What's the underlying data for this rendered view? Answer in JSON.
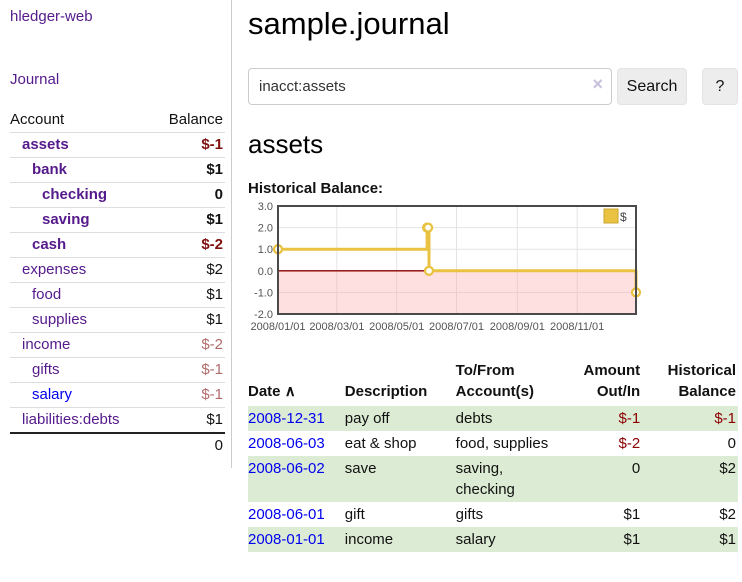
{
  "sidebar": {
    "app_title": "hledger-web",
    "journal_link": "Journal",
    "accounts": {
      "header_account": "Account",
      "header_balance": "Balance",
      "rows": [
        {
          "name": "assets",
          "balance": "$-1",
          "depth": 0,
          "bold": true,
          "unvisited": false
        },
        {
          "name": "bank",
          "balance": "$1",
          "depth": 1,
          "bold": true,
          "unvisited": false
        },
        {
          "name": "checking",
          "balance": "0",
          "depth": 2,
          "bold": true,
          "unvisited": false
        },
        {
          "name": "saving",
          "balance": "$1",
          "depth": 2,
          "bold": true,
          "unvisited": false
        },
        {
          "name": "cash",
          "balance": "$-2",
          "depth": 1,
          "bold": true,
          "unvisited": false
        },
        {
          "name": "expenses",
          "balance": "$2",
          "depth": 0,
          "bold": false,
          "unvisited": false
        },
        {
          "name": "food",
          "balance": "$1",
          "depth": 1,
          "bold": false,
          "unvisited": false
        },
        {
          "name": "supplies",
          "balance": "$1",
          "depth": 1,
          "bold": false,
          "unvisited": false
        },
        {
          "name": "income",
          "balance": "$-2",
          "depth": 0,
          "bold": false,
          "unvisited": false
        },
        {
          "name": "gifts",
          "balance": "$-1",
          "depth": 1,
          "bold": false,
          "unvisited": false
        },
        {
          "name": "salary",
          "balance": "$-1",
          "depth": 1,
          "bold": false,
          "unvisited": true
        },
        {
          "name": "liabilities:debts",
          "balance": "$1",
          "depth": 0,
          "bold": false,
          "unvisited": false
        }
      ],
      "total": "0"
    }
  },
  "main": {
    "title": "sample.journal",
    "search": {
      "value": "inacct:assets",
      "clear_glyph": "×",
      "button_label": "Search",
      "help_label": "?"
    },
    "account_heading": "assets",
    "chart_label": "Historical Balance:"
  },
  "chart_data": {
    "type": "line",
    "style": "steps",
    "title": "Historical Balance",
    "series": [
      {
        "name": "$",
        "color": "#e8c240",
        "points": [
          [
            "2008-01-01",
            1
          ],
          [
            "2008-06-01",
            2
          ],
          [
            "2008-06-02",
            2
          ],
          [
            "2008-06-03",
            0
          ],
          [
            "2008-12-31",
            -1
          ]
        ]
      }
    ],
    "xlim": [
      "2008-01-01",
      "2008-12-31"
    ],
    "ylim": [
      -2,
      3
    ],
    "yticks": [
      "3.0",
      "2.0",
      "1.0",
      "0.0",
      "-1.0",
      "-2.0"
    ],
    "ytick_values": [
      3,
      2,
      1,
      0,
      -1,
      -2
    ],
    "xticks": [
      {
        "date": "2008-01-01",
        "label": "2008/01/01"
      },
      {
        "date": "2008-03-01",
        "label": "2008/03/01"
      },
      {
        "date": "2008-05-01",
        "label": "2008/05/01"
      },
      {
        "date": "2008-07-01",
        "label": "2008/07/01"
      },
      {
        "date": "2008-09-01",
        "label": "2008/09/01"
      },
      {
        "date": "2008-11-01",
        "label": "2008/11/01"
      }
    ],
    "grid": true,
    "legend_position": "top-right",
    "negative_region": true,
    "zero_line_color": "#8b0000",
    "axis_label_color": "#545454"
  },
  "register": {
    "headers": {
      "date": "Date",
      "sort_arrow": "∧",
      "description": "Description",
      "accounts": "To/From Account(s)",
      "amount": "Amount Out/In",
      "balance": "Historical Balance"
    },
    "rows": [
      {
        "date": "2008-12-31",
        "description": "pay off",
        "accounts": "debts",
        "amount": "$-1",
        "balance": "$-1"
      },
      {
        "date": "2008-06-03",
        "description": "eat & shop",
        "accounts": "food, supplies",
        "amount": "$-2",
        "balance": "0"
      },
      {
        "date": "2008-06-02",
        "description": "save",
        "accounts": "saving, checking",
        "amount": "0",
        "balance": "$2"
      },
      {
        "date": "2008-06-01",
        "description": "gift",
        "accounts": "gifts",
        "amount": "$1",
        "balance": "$2"
      },
      {
        "date": "2008-01-01",
        "description": "income",
        "accounts": "salary",
        "amount": "$1",
        "balance": "$1"
      }
    ]
  },
  "colors": {
    "link_visited": "#551a8b",
    "link_unvisited": "#0000ee",
    "negative_strong": "#7f1010",
    "negative_muted": "#b26b6b",
    "negative_table": "#8b0000",
    "row_highlight": "#dcebd3",
    "series_gold": "#e8c240"
  }
}
